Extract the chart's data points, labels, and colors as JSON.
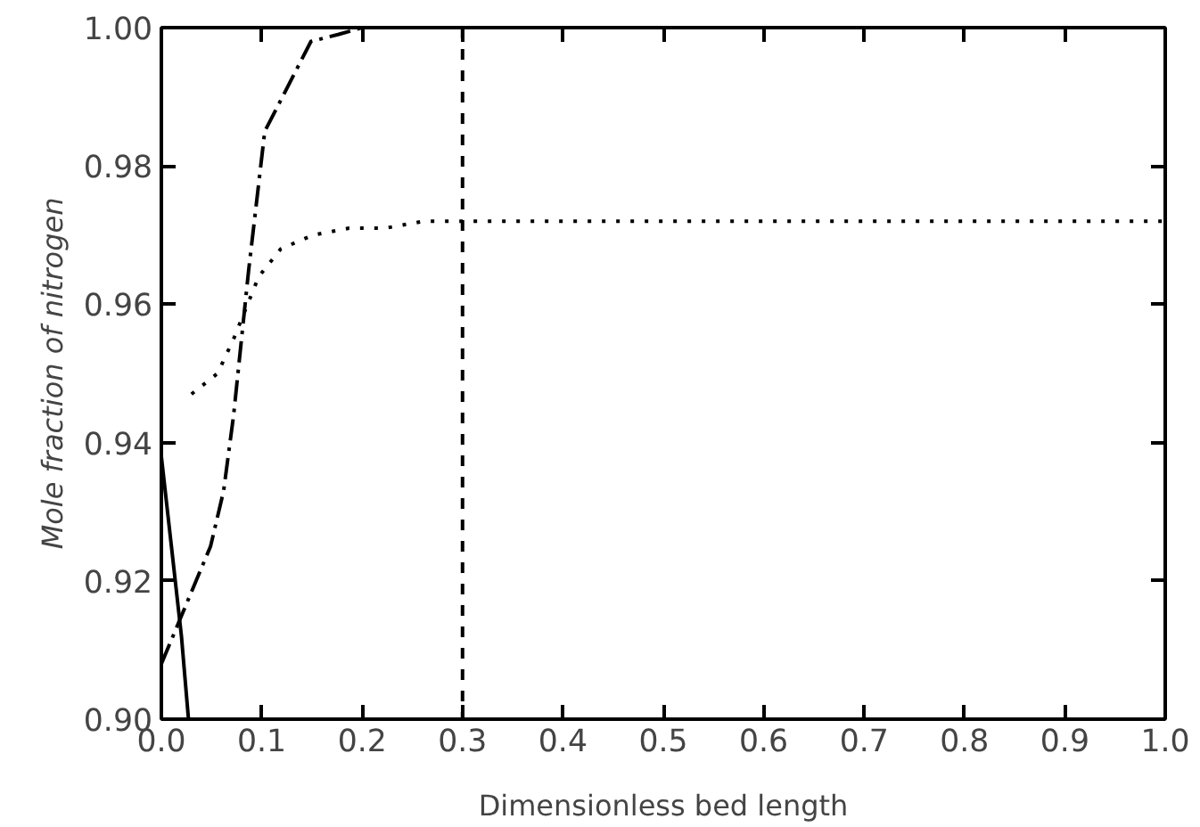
{
  "chart_data": {
    "type": "line",
    "xlabel": "Dimensionless bed length",
    "ylabel": "Mole fraction of nitrogen",
    "xlim": [
      0,
      1
    ],
    "ylim": [
      0.9,
      1.0
    ],
    "xticks": [
      {
        "value": 0,
        "label": "0.0"
      },
      0.1,
      0.2,
      0.3,
      0.4,
      0.5,
      0.6,
      0.7,
      0.8,
      0.9,
      {
        "value": 1,
        "label": "1.0"
      }
    ],
    "yticks": [
      {
        "value": 0.9,
        "label": "0.90"
      },
      0.92,
      0.94,
      0.96,
      0.98,
      {
        "value": 1,
        "label": "1.00"
      }
    ],
    "grid": false,
    "marker": "none",
    "series": [
      {
        "color": "#000000",
        "line_style": "solid",
        "x": [
          0,
          0.01,
          0.02,
          0.027
        ],
        "values": [
          0.938,
          0.925,
          0.912,
          0.9
        ]
      },
      {
        "color": "#000000",
        "line_style": "dashdot",
        "x": [
          0,
          0.049,
          0.062,
          0.072,
          0.087,
          0.103,
          0.149,
          0.176,
          0.2
        ],
        "values": [
          0.908,
          0.925,
          0.933,
          0.944,
          0.965,
          0.985,
          0.998,
          0.999,
          1.0
        ]
      },
      {
        "color": "#000000",
        "line_style": "dotted",
        "x": [
          0.03,
          0.056,
          0.072,
          0.097,
          0.119,
          0.151,
          0.187,
          0.223,
          0.261,
          0.3,
          0.5,
          0.7,
          1.0
        ],
        "values": [
          0.947,
          0.95,
          0.955,
          0.964,
          0.968,
          0.97,
          0.971,
          0.971,
          0.972,
          0.972,
          0.972,
          0.972,
          0.972
        ]
      }
    ],
    "ref_lines": [
      {
        "axis": "x",
        "value": 0.3,
        "color": "#000000",
        "line_style": "dashed"
      }
    ]
  }
}
